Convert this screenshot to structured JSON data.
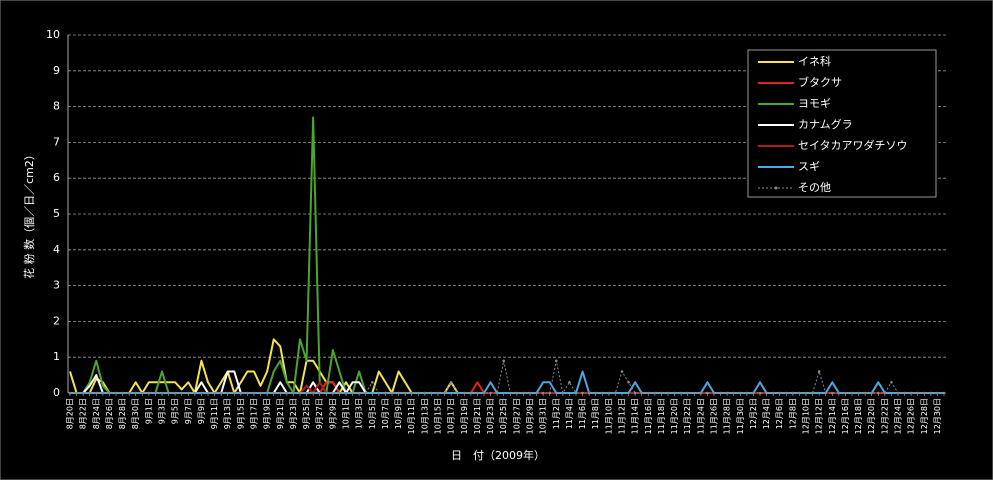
{
  "chart_data": {
    "type": "line",
    "x_label": "日　付（2009年）",
    "y_label": "花 粉 数（個／日／cm2）",
    "categories": [
      "8月20日",
      null,
      "8月22日",
      null,
      "8月24日",
      null,
      "8月26日",
      null,
      "8月28日",
      null,
      "8月30日",
      null,
      "9月1日",
      null,
      "9月3日",
      null,
      "9月5日",
      null,
      "9月7日",
      null,
      "9月9日",
      null,
      "9月11日",
      null,
      "9月13日",
      null,
      "9月15日",
      null,
      "9月17日",
      null,
      "9月19日",
      null,
      "9月21日",
      null,
      "9月23日",
      null,
      "9月25日",
      null,
      "9月27日",
      null,
      "9月29日",
      null,
      "10月1日",
      null,
      "10月3日",
      null,
      "10月5日",
      null,
      "10月7日",
      null,
      "10月9日",
      null,
      "10月11日",
      null,
      "10月13日",
      null,
      "10月15日",
      null,
      "10月17日",
      null,
      "10月19日",
      null,
      "10月21日",
      null,
      "10月23日",
      null,
      "10月25日",
      null,
      "10月27日",
      null,
      "10月29日",
      null,
      "10月31日",
      null,
      "11月2日",
      null,
      "11月4日",
      null,
      "11月6日",
      null,
      "11月8日",
      null,
      "11月10日",
      null,
      "11月12日",
      null,
      "11月14日",
      null,
      "11月16日",
      null,
      "11月18日",
      null,
      "11月20日",
      null,
      "11月22日",
      null,
      "11月24日",
      null,
      "11月26日",
      null,
      "11月28日",
      null,
      "11月30日",
      null,
      "12月2日",
      null,
      "12月4日",
      null,
      "12月6日",
      null,
      "12月8日",
      null,
      "12月10日",
      null,
      "12月12日",
      null,
      "12月14日",
      null,
      "12月16日",
      null,
      "12月18日",
      null,
      "12月20日",
      null,
      "12月22日",
      null,
      "12月24日",
      null,
      "12月26日",
      null,
      "12月28日",
      null,
      "12月30日",
      null
    ],
    "series": [
      {
        "name": "イネ科",
        "color": "#f2e44a",
        "values": [
          0.6,
          0,
          0,
          0,
          0.4,
          0.3,
          0,
          0,
          0,
          0,
          0.3,
          0,
          0.3,
          0.3,
          0.3,
          0.3,
          0.3,
          0.1,
          0.3,
          0,
          0.9,
          0.3,
          0,
          0.3,
          0.6,
          0,
          0.3,
          0.6,
          0.6,
          0.2,
          0.6,
          1.5,
          1.3,
          0.3,
          0.3,
          0,
          0.9,
          0.9,
          0.6,
          0.3,
          0.3,
          0,
          0.3,
          0,
          0,
          0,
          0,
          0.6,
          0.3,
          0,
          0.6,
          0.3,
          0,
          0,
          0,
          0,
          0,
          0,
          0.3,
          0,
          0,
          0,
          0,
          0,
          0,
          0,
          0,
          0,
          0,
          0,
          0,
          0,
          0,
          0,
          0,
          0,
          0,
          0,
          0,
          0,
          0,
          0,
          0,
          0,
          0,
          0,
          0,
          0,
          0,
          0,
          0,
          0,
          0,
          0,
          0,
          0,
          0,
          0,
          0,
          0,
          0,
          0,
          0,
          0,
          0,
          0,
          0,
          0,
          0,
          0,
          0,
          0,
          0,
          0,
          0,
          0,
          0,
          0,
          0,
          0,
          0,
          0,
          0,
          0,
          0,
          0,
          0,
          0,
          0,
          0,
          0,
          0,
          0,
          0
        ]
      },
      {
        "name": "ブタクサ",
        "color": "#e02424",
        "values": [
          0,
          0,
          0,
          0,
          0,
          0,
          0,
          0,
          0,
          0,
          0,
          0,
          0,
          0,
          0,
          0,
          0,
          0,
          0,
          0,
          0,
          0,
          0,
          0,
          0,
          0,
          0,
          0,
          0,
          0,
          0,
          0,
          0,
          0,
          0,
          0,
          0,
          0.3,
          0,
          0.3,
          0.3,
          0,
          0,
          0,
          0,
          0,
          0,
          0,
          0,
          0,
          0,
          0,
          0,
          0,
          0,
          0,
          0,
          0,
          0,
          0,
          0,
          0,
          0.3,
          0,
          0,
          0,
          0,
          0,
          0,
          0,
          0,
          0,
          0,
          0,
          0,
          0,
          0,
          0,
          0,
          0,
          0,
          0,
          0,
          0,
          0,
          0,
          0,
          0,
          0,
          0,
          0,
          0,
          0,
          0,
          0,
          0,
          0,
          0,
          0,
          0,
          0,
          0,
          0,
          0,
          0,
          0,
          0,
          0,
          0,
          0,
          0,
          0,
          0,
          0,
          0,
          0,
          0,
          0,
          0,
          0,
          0,
          0,
          0,
          0,
          0,
          0,
          0,
          0,
          0,
          0,
          0,
          0,
          0,
          0
        ]
      },
      {
        "name": "ヨモギ",
        "color": "#4ea52e",
        "values": [
          0,
          0,
          0,
          0.3,
          0.9,
          0.2,
          0,
          0,
          0,
          0,
          0,
          0,
          0,
          0,
          0.6,
          0,
          0,
          0,
          0,
          0,
          0,
          0,
          0,
          0,
          0,
          0,
          0,
          0,
          0,
          0,
          0,
          0.6,
          0.9,
          0.3,
          0,
          1.5,
          0.9,
          7.7,
          0.3,
          0,
          1.2,
          0.6,
          0,
          0,
          0.6,
          0,
          0,
          0,
          0,
          0,
          0,
          0,
          0,
          0,
          0,
          0,
          0,
          0,
          0,
          0,
          0,
          0,
          0,
          0,
          0,
          0,
          0,
          0,
          0,
          0,
          0,
          0,
          0,
          0,
          0,
          0,
          0,
          0,
          0,
          0,
          0,
          0,
          0,
          0,
          0,
          0,
          0,
          0,
          0,
          0,
          0,
          0,
          0,
          0,
          0,
          0,
          0,
          0,
          0,
          0,
          0,
          0,
          0,
          0,
          0,
          0,
          0,
          0,
          0,
          0,
          0,
          0,
          0,
          0,
          0,
          0,
          0,
          0,
          0,
          0,
          0,
          0,
          0,
          0,
          0,
          0,
          0,
          0,
          0,
          0,
          0,
          0,
          0,
          0
        ]
      },
      {
        "name": "カナムグラ",
        "color": "#ffffff",
        "values": [
          0,
          0,
          0,
          0.2,
          0.5,
          0,
          0,
          0,
          0,
          0,
          0,
          0,
          0,
          0,
          0,
          0,
          0,
          0,
          0,
          0,
          0.3,
          0,
          0,
          0,
          0.6,
          0.6,
          0,
          0,
          0,
          0,
          0,
          0,
          0.3,
          0,
          0,
          0,
          0,
          0.3,
          0,
          0,
          0,
          0.3,
          0,
          0.3,
          0.3,
          0,
          0,
          0,
          0,
          0,
          0,
          0,
          0,
          0,
          0,
          0,
          0,
          0,
          0,
          0,
          0,
          0,
          0,
          0,
          0,
          0,
          0,
          0,
          0,
          0,
          0,
          0,
          0,
          0,
          0,
          0,
          0,
          0,
          0,
          0,
          0,
          0,
          0,
          0,
          0,
          0,
          0,
          0,
          0,
          0,
          0,
          0,
          0,
          0,
          0,
          0,
          0,
          0,
          0,
          0,
          0,
          0,
          0,
          0,
          0,
          0,
          0,
          0,
          0,
          0,
          0,
          0,
          0,
          0,
          0,
          0,
          0,
          0,
          0,
          0,
          0,
          0,
          0,
          0,
          0,
          0,
          0,
          0,
          0,
          0,
          0,
          0,
          0,
          0
        ]
      },
      {
        "name": "セイタカアワダチソウ",
        "color": "#b51a1a",
        "values": [
          0,
          0,
          0,
          0,
          0,
          0,
          0,
          0,
          0,
          0,
          0,
          0,
          0,
          0,
          0,
          0,
          0,
          0,
          0,
          0,
          0,
          0,
          0,
          0,
          0,
          0,
          0,
          0,
          0,
          0,
          0,
          0,
          0,
          0,
          0,
          0,
          0.2,
          0,
          0.3,
          0,
          0,
          0,
          0,
          0,
          0,
          0,
          0,
          0,
          0,
          0,
          0,
          0,
          0,
          0,
          0,
          0,
          0,
          0,
          0,
          0,
          0,
          0,
          0,
          0,
          0,
          0,
          0,
          0,
          0,
          0,
          0,
          0,
          0,
          0,
          0,
          0,
          0,
          0,
          0,
          0,
          0,
          0,
          0,
          0,
          0,
          0,
          0,
          0,
          0,
          0,
          0,
          0,
          0,
          0,
          0,
          0,
          0,
          0,
          0,
          0,
          0,
          0,
          0,
          0,
          0,
          0,
          0,
          0,
          0,
          0,
          0,
          0,
          0,
          0,
          0,
          0,
          0,
          0,
          0,
          0,
          0,
          0,
          0,
          0,
          0,
          0,
          0,
          0,
          0,
          0,
          0,
          0,
          0,
          0
        ]
      },
      {
        "name": "スギ",
        "color": "#4aa9e2",
        "values": [
          0,
          0,
          0,
          0,
          0,
          0,
          0,
          0,
          0,
          0,
          0,
          0,
          0,
          0,
          0,
          0,
          0,
          0,
          0,
          0,
          0,
          0,
          0,
          0,
          0,
          0,
          0,
          0,
          0,
          0,
          0,
          0,
          0,
          0,
          0,
          0,
          0,
          0,
          0,
          0,
          0,
          0,
          0,
          0,
          0,
          0,
          0,
          0,
          0,
          0,
          0,
          0,
          0,
          0,
          0,
          0,
          0,
          0,
          0,
          0,
          0,
          0,
          0,
          0,
          0.3,
          0,
          0,
          0,
          0,
          0,
          0,
          0,
          0.3,
          0.3,
          0,
          0,
          0,
          0,
          0.6,
          0,
          0,
          0,
          0,
          0,
          0,
          0,
          0.3,
          0,
          0,
          0,
          0,
          0,
          0,
          0,
          0,
          0,
          0,
          0.3,
          0,
          0,
          0,
          0,
          0,
          0,
          0,
          0.3,
          0,
          0,
          0,
          0,
          0,
          0,
          0,
          0,
          0,
          0,
          0.3,
          0,
          0,
          0,
          0,
          0,
          0,
          0.3,
          0,
          0,
          0,
          0,
          0,
          0,
          0,
          0,
          0,
          0
        ]
      },
      {
        "name": "その他",
        "color": "#8a8a8a",
        "dashed": true,
        "markers": true,
        "values": [
          0,
          0,
          0,
          0,
          0,
          0,
          0,
          0,
          0,
          0,
          0,
          0,
          0,
          0,
          0,
          0,
          0,
          0,
          0,
          0,
          0,
          0,
          0,
          0,
          0,
          0,
          0,
          0,
          0,
          0,
          0,
          0,
          0,
          0,
          0,
          0,
          0,
          0,
          0,
          0,
          0,
          0,
          0,
          0,
          0,
          0,
          0.3,
          0,
          0,
          0,
          0,
          0,
          0,
          0,
          0,
          0,
          0,
          0,
          0.3,
          0,
          0,
          0,
          0,
          0,
          0,
          0,
          0.9,
          0,
          0,
          0,
          0,
          0,
          0,
          0,
          0.9,
          0,
          0.3,
          0,
          0,
          0,
          0,
          0,
          0,
          0,
          0.6,
          0.3,
          0,
          0,
          0,
          0,
          0,
          0,
          0,
          0,
          0,
          0,
          0,
          0,
          0,
          0,
          0,
          0,
          0,
          0,
          0,
          0,
          0,
          0,
          0,
          0,
          0,
          0,
          0,
          0,
          0.6,
          0,
          0,
          0,
          0,
          0,
          0,
          0,
          0,
          0,
          0,
          0.3,
          0,
          0,
          0,
          0,
          0,
          0,
          0,
          0
        ]
      }
    ],
    "ylim": [
      0,
      10
    ],
    "yticks": [
      0,
      1,
      2,
      3,
      4,
      5,
      6,
      7,
      8,
      9,
      10
    ],
    "grid": true,
    "legend": "upper-right"
  }
}
